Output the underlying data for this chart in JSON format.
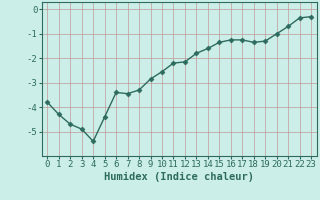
{
  "x": [
    0,
    1,
    2,
    3,
    4,
    5,
    6,
    7,
    8,
    9,
    10,
    11,
    12,
    13,
    14,
    15,
    16,
    17,
    18,
    19,
    20,
    21,
    22,
    23
  ],
  "y": [
    -3.8,
    -4.3,
    -4.7,
    -4.9,
    -5.4,
    -4.4,
    -3.4,
    -3.45,
    -3.3,
    -2.85,
    -2.55,
    -2.2,
    -2.15,
    -1.8,
    -1.6,
    -1.35,
    -1.25,
    -1.25,
    -1.35,
    -1.3,
    -1.0,
    -0.7,
    -0.35,
    -0.3
  ],
  "line_color": "#2d6b5e",
  "marker": "D",
  "markersize": 2.5,
  "linewidth": 1.0,
  "bg_color": "#cceee8",
  "grid_color_major": "#c09898",
  "grid_color_minor": "#c09898",
  "xlabel": "Humidex (Indice chaleur)",
  "xlim": [
    -0.5,
    23.5
  ],
  "ylim": [
    -6,
    0.3
  ],
  "yticks": [
    0,
    -1,
    -2,
    -3,
    -4,
    -5
  ],
  "xticks": [
    0,
    1,
    2,
    3,
    4,
    5,
    6,
    7,
    8,
    9,
    10,
    11,
    12,
    13,
    14,
    15,
    16,
    17,
    18,
    19,
    20,
    21,
    22,
    23
  ],
  "xlabel_fontsize": 7.5,
  "tick_fontsize": 6.5,
  "spine_color": "#2d6b5e"
}
